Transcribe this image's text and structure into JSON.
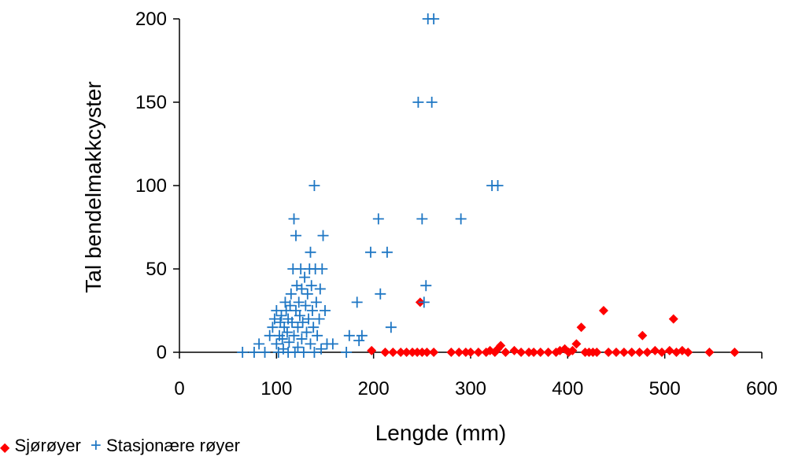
{
  "chart_data": {
    "type": "scatter",
    "title": "",
    "xlabel": "Lengde (mm)",
    "ylabel": "Tal bendelmakkcyster",
    "xlim": [
      0,
      600
    ],
    "ylim": [
      0,
      200
    ],
    "x_ticks": [
      "0",
      "100",
      "200",
      "300",
      "400",
      "500",
      "600"
    ],
    "y_ticks": [
      "0",
      "50",
      "100",
      "150",
      "200"
    ],
    "grid": false,
    "legend_placement": "bottom-left",
    "series": [
      {
        "name": "Sjørøyer",
        "marker": "diamond",
        "color": "#ff0000",
        "points": [
          [
            198,
            1
          ],
          [
            212,
            0
          ],
          [
            220,
            0
          ],
          [
            228,
            0
          ],
          [
            234,
            0
          ],
          [
            240,
            0
          ],
          [
            245,
            0
          ],
          [
            248,
            30
          ],
          [
            250,
            0
          ],
          [
            255,
            0
          ],
          [
            262,
            0
          ],
          [
            280,
            0
          ],
          [
            288,
            0
          ],
          [
            295,
            0
          ],
          [
            300,
            0
          ],
          [
            308,
            0
          ],
          [
            316,
            0
          ],
          [
            320,
            1
          ],
          [
            325,
            0
          ],
          [
            328,
            2
          ],
          [
            331,
            4
          ],
          [
            336,
            0
          ],
          [
            345,
            1
          ],
          [
            352,
            0
          ],
          [
            360,
            0
          ],
          [
            365,
            0
          ],
          [
            372,
            0
          ],
          [
            380,
            0
          ],
          [
            388,
            0
          ],
          [
            392,
            1
          ],
          [
            397,
            2
          ],
          [
            401,
            0
          ],
          [
            405,
            1
          ],
          [
            409,
            5
          ],
          [
            414,
            15
          ],
          [
            418,
            0
          ],
          [
            422,
            0
          ],
          [
            426,
            0
          ],
          [
            430,
            0
          ],
          [
            437,
            25
          ],
          [
            442,
            0
          ],
          [
            450,
            0
          ],
          [
            458,
            0
          ],
          [
            466,
            0
          ],
          [
            474,
            0
          ],
          [
            477,
            10
          ],
          [
            482,
            0
          ],
          [
            490,
            1
          ],
          [
            497,
            0
          ],
          [
            505,
            1
          ],
          [
            509,
            20
          ],
          [
            512,
            0
          ],
          [
            518,
            1
          ],
          [
            524,
            0
          ],
          [
            546,
            0
          ],
          [
            572,
            0
          ]
        ]
      },
      {
        "name": "Stasjonære røyer",
        "marker": "plus",
        "color": "#1f77c4",
        "points": [
          [
            65,
            0
          ],
          [
            77,
            0
          ],
          [
            82,
            5
          ],
          [
            88,
            0
          ],
          [
            93,
            10
          ],
          [
            96,
            15
          ],
          [
            98,
            20
          ],
          [
            100,
            25
          ],
          [
            100,
            5
          ],
          [
            102,
            0
          ],
          [
            103,
            10
          ],
          [
            104,
            18
          ],
          [
            105,
            22
          ],
          [
            106,
            8
          ],
          [
            107,
            2
          ],
          [
            108,
            15
          ],
          [
            109,
            30
          ],
          [
            110,
            25
          ],
          [
            111,
            12
          ],
          [
            112,
            0
          ],
          [
            112,
            20
          ],
          [
            113,
            6
          ],
          [
            114,
            28
          ],
          [
            115,
            35
          ],
          [
            116,
            18
          ],
          [
            117,
            50
          ],
          [
            118,
            80
          ],
          [
            118,
            10
          ],
          [
            119,
            0
          ],
          [
            120,
            70
          ],
          [
            120,
            25
          ],
          [
            121,
            40
          ],
          [
            122,
            15
          ],
          [
            122,
            3
          ],
          [
            123,
            30
          ],
          [
            124,
            22
          ],
          [
            125,
            50
          ],
          [
            126,
            38
          ],
          [
            126,
            8
          ],
          [
            127,
            18
          ],
          [
            128,
            0
          ],
          [
            129,
            45
          ],
          [
            130,
            28
          ],
          [
            131,
            12
          ],
          [
            132,
            35
          ],
          [
            133,
            20
          ],
          [
            134,
            50
          ],
          [
            135,
            60
          ],
          [
            135,
            5
          ],
          [
            136,
            40
          ],
          [
            137,
            25
          ],
          [
            138,
            15
          ],
          [
            139,
            100
          ],
          [
            139,
            0
          ],
          [
            140,
            50
          ],
          [
            141,
            30
          ],
          [
            142,
            10
          ],
          [
            144,
            20
          ],
          [
            145,
            38
          ],
          [
            146,
            2
          ],
          [
            147,
            50
          ],
          [
            148,
            70
          ],
          [
            150,
            25
          ],
          [
            152,
            5
          ],
          [
            158,
            5
          ],
          [
            172,
            0
          ],
          [
            175,
            10
          ],
          [
            183,
            30
          ],
          [
            185,
            7
          ],
          [
            188,
            10
          ],
          [
            197,
            60
          ],
          [
            205,
            80
          ],
          [
            207,
            35
          ],
          [
            214,
            60
          ],
          [
            218,
            15
          ],
          [
            246,
            150
          ],
          [
            250,
            80
          ],
          [
            252,
            30
          ],
          [
            254,
            40
          ],
          [
            256,
            200
          ],
          [
            260,
            150
          ],
          [
            262,
            200
          ],
          [
            290,
            80
          ],
          [
            322,
            100
          ],
          [
            328,
            100
          ]
        ]
      }
    ]
  },
  "legend": {
    "items": [
      {
        "symbol": "◆",
        "label": "Sjørøyer"
      },
      {
        "symbol": "+",
        "label": "Stasjonære røyer"
      }
    ]
  }
}
